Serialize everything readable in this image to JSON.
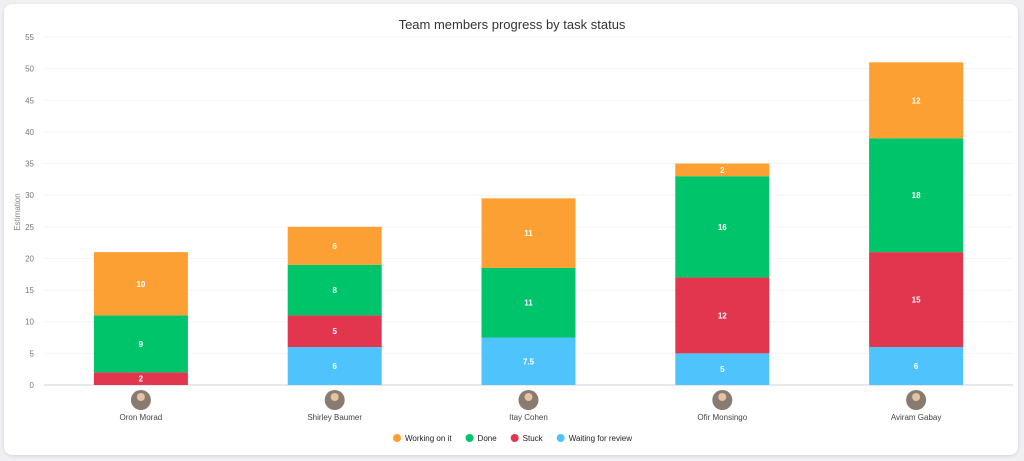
{
  "chart_data": {
    "type": "bar",
    "stacked": true,
    "title": "Team members progress by task status",
    "xlabel": "",
    "ylabel": "Estimation",
    "ylim": [
      0,
      55
    ],
    "yticks": [
      0,
      5,
      10,
      15,
      20,
      25,
      30,
      35,
      40,
      45,
      50,
      55
    ],
    "grid": true,
    "legend_position": "bottom",
    "categories": [
      "Oron Morad",
      "Shirley Baumer",
      "Itay Cohen",
      "Ofir Monsingo",
      "Aviram Gabay"
    ],
    "category_icon": "avatar",
    "series": [
      {
        "name": "Waiting for review",
        "color": "#4fc4fc",
        "values": [
          0,
          6,
          7.5,
          5,
          6
        ]
      },
      {
        "name": "Stuck",
        "color": "#e2364f",
        "values": [
          2,
          5,
          0,
          12,
          15
        ]
      },
      {
        "name": "Done",
        "color": "#00c46a",
        "values": [
          9,
          8,
          11,
          16,
          18
        ]
      },
      {
        "name": "Working on it",
        "color": "#fda034",
        "values": [
          10,
          6,
          11,
          2,
          12
        ]
      }
    ],
    "legend_order": [
      "Working on it",
      "Done",
      "Stuck",
      "Waiting for review"
    ]
  }
}
